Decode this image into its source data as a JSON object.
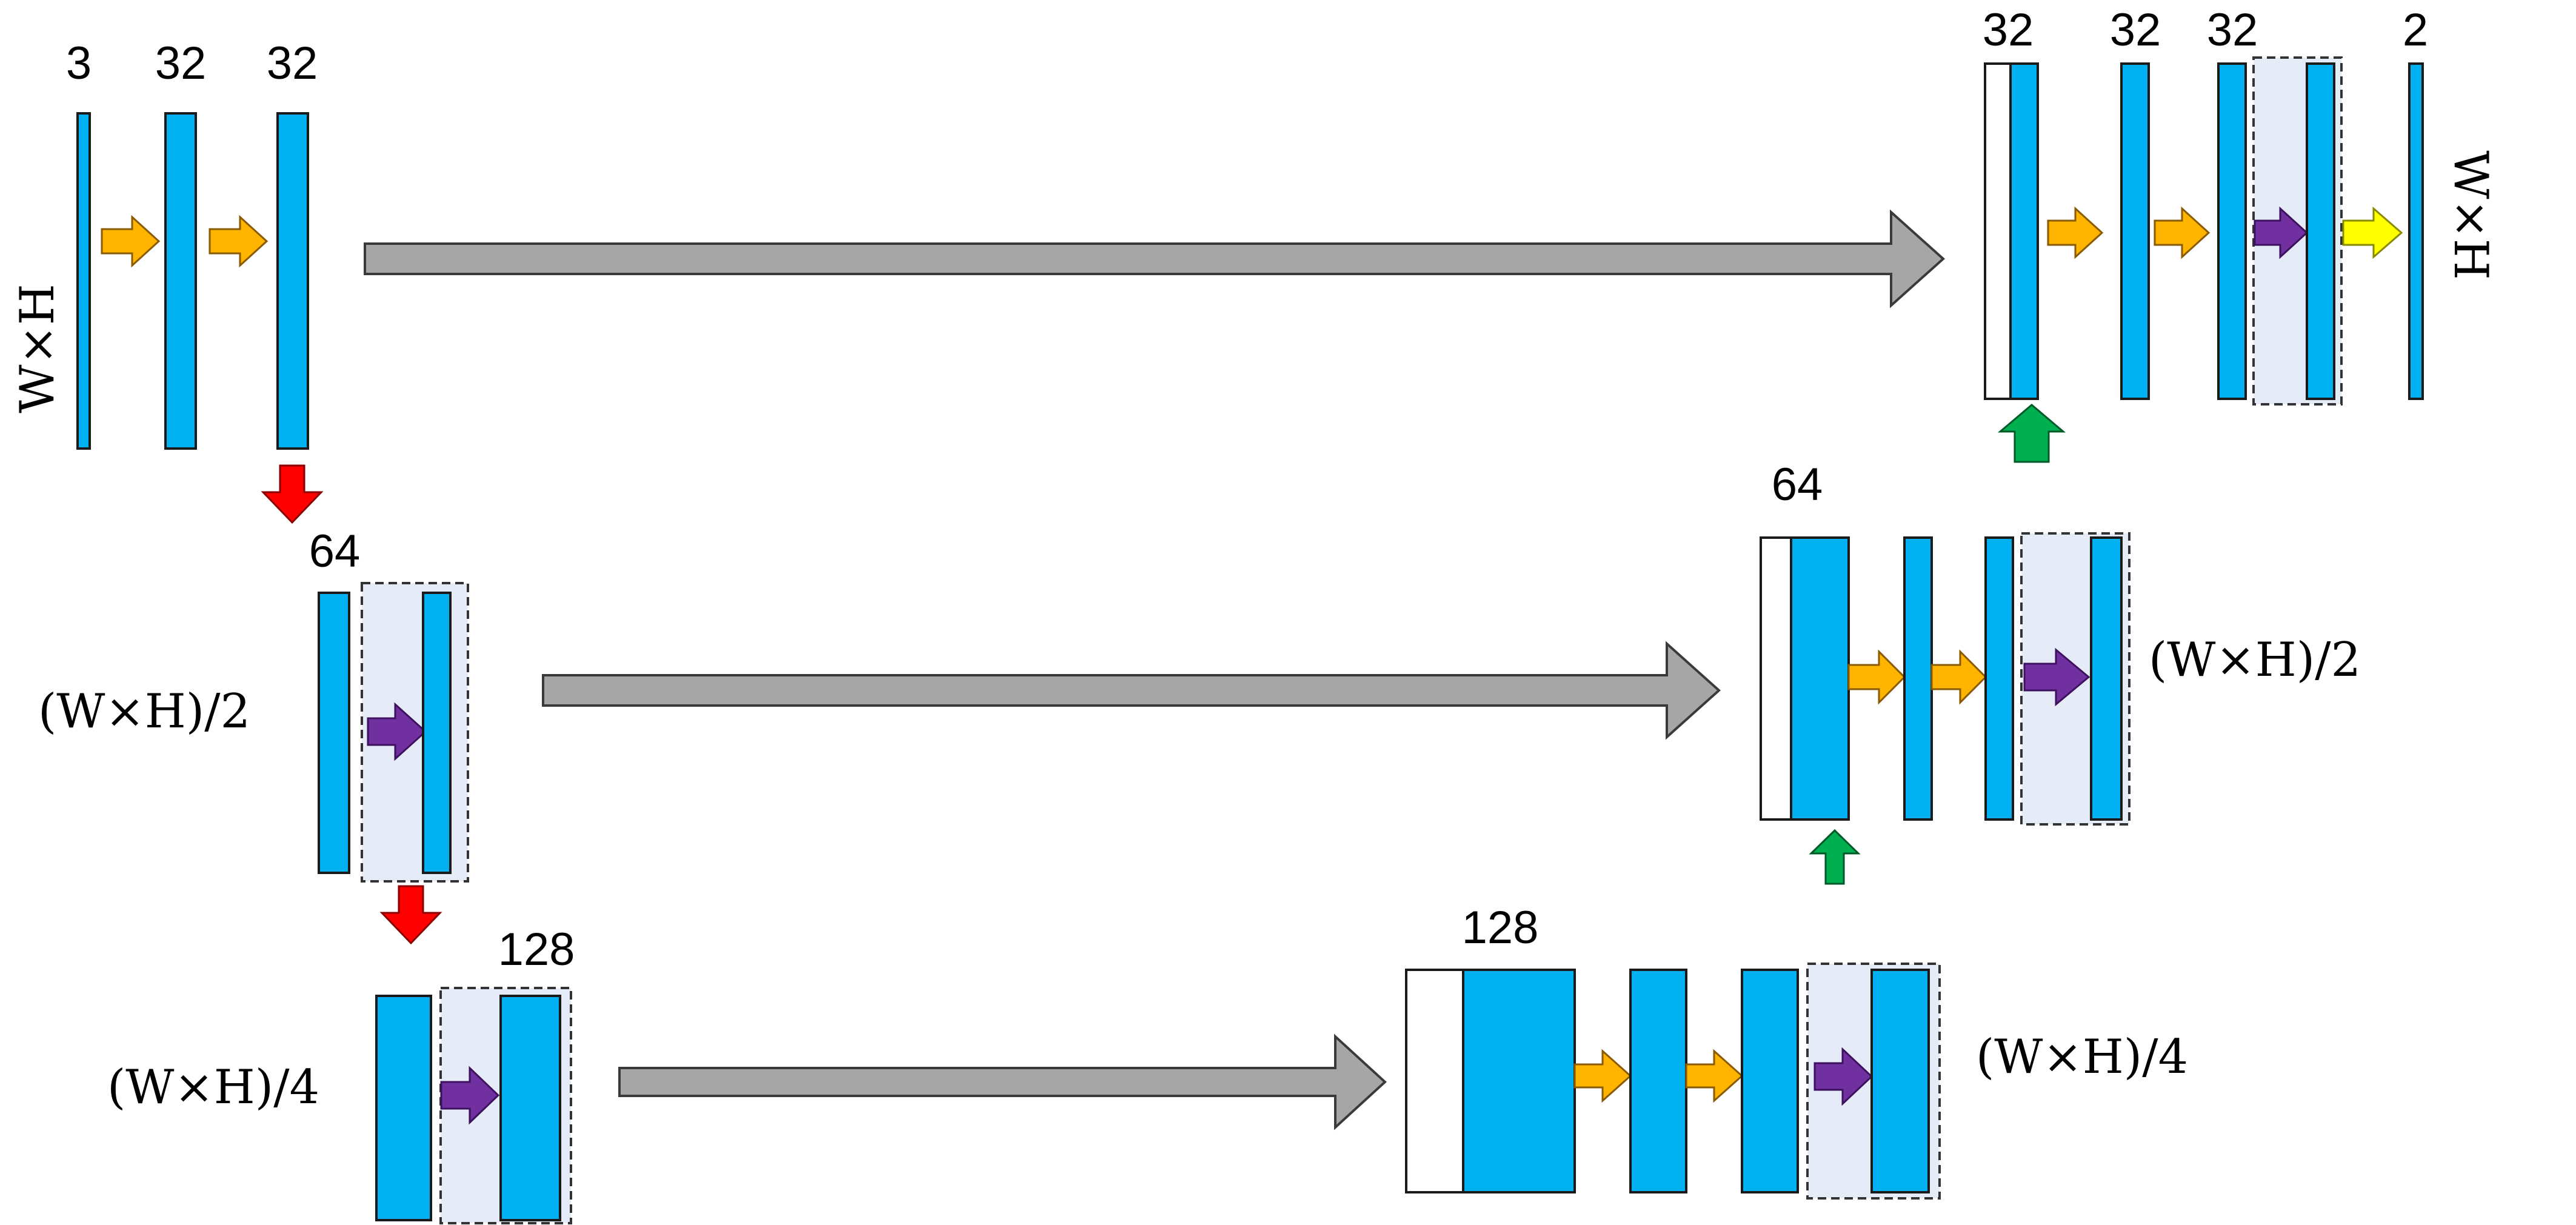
{
  "colors": {
    "feature_map": "#00b0f0",
    "concat_block": "#ffffff",
    "group_box": "#e6ecf7",
    "skip_connection": "#a6a6a6",
    "conv_arrow": "#ffb400",
    "residual_arrow": "#7030a0",
    "output_arrow": "#ffff00",
    "downsample_arrow": "#ff0000",
    "upsample_arrow": "#00b050"
  },
  "channels": {
    "enc1_input": "3",
    "enc1_a": "32",
    "enc1_b": "32",
    "enc2": "64",
    "enc3": "128",
    "dec3": "128",
    "dec2": "64",
    "dec1_a": "32",
    "dec1_b": "32",
    "dec1_c": "32",
    "output": "2"
  },
  "resolutions": {
    "level1_left": "W×H",
    "level1_right": "W×H",
    "level2_left": "(W×H)/2",
    "level2_right": "(W×H)/2",
    "level3_left": "(W×H)/4",
    "level3_right": "(W×H)/4"
  }
}
